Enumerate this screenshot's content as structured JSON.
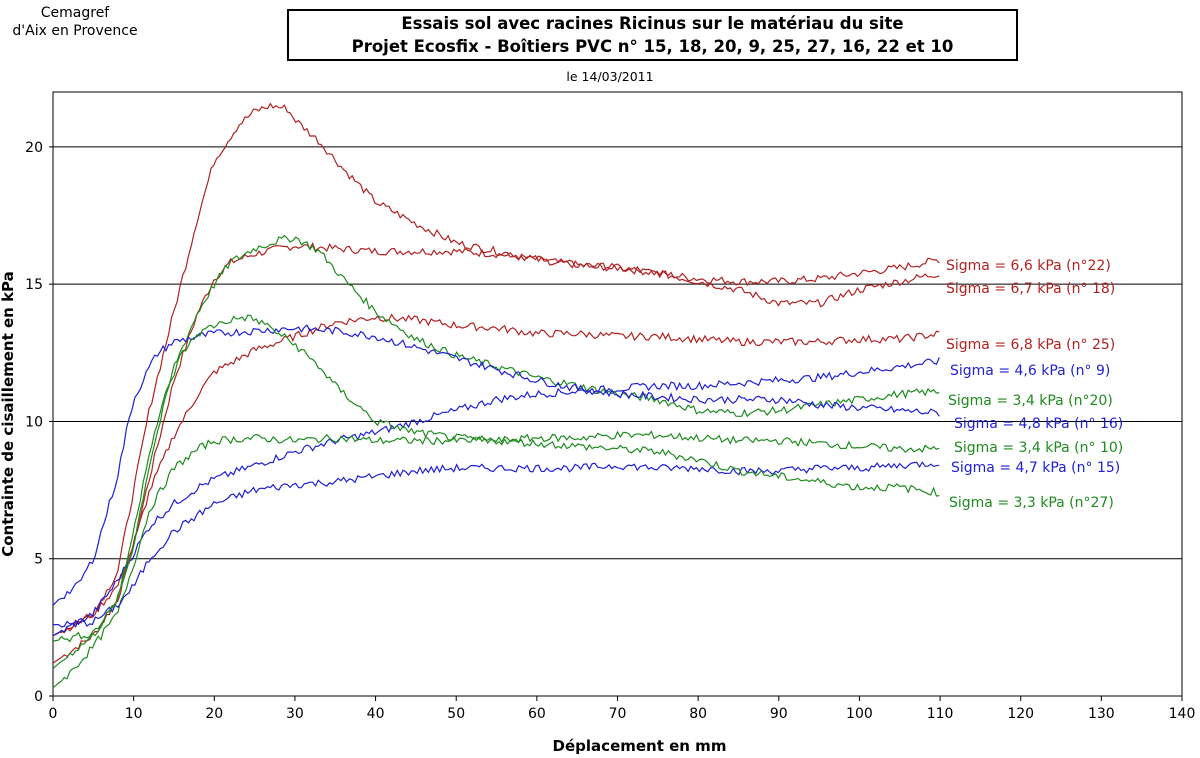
{
  "header": {
    "org_line1": "Cemagref",
    "org_line2": "d'Aix en Provence"
  },
  "chart_data": {
    "type": "line",
    "title": "Essais sol avec racines Ricinus sur le matériau du site",
    "title_line2": "Projet Ecosfix - Boîtiers PVC n° 15, 18, 20, 9, 25, 27, 16, 22 et 10",
    "subtitle": "le 14/03/2011",
    "xlabel": "Déplacement en mm",
    "ylabel": "Contrainte de cisaillement en kPa",
    "xlim": [
      0,
      140
    ],
    "ylim": [
      0,
      22
    ],
    "xticks": [
      "0",
      "10",
      "20",
      "30",
      "40",
      "50",
      "60",
      "70",
      "80",
      "90",
      "100",
      "110",
      "120",
      "130",
      "140"
    ],
    "yticks": [
      "0",
      "5",
      "10",
      "15",
      "20"
    ],
    "grid": "horizontal",
    "series": [
      {
        "name": "Sigma = 6,6 kPa (n°22)",
        "color": "#B22222",
        "x": [
          0,
          2,
          5,
          8,
          10,
          12,
          15,
          18,
          20,
          22,
          25,
          28,
          30,
          35,
          40,
          45,
          50,
          55,
          60,
          65,
          70,
          75,
          80,
          85,
          90,
          95,
          100,
          105,
          110
        ],
        "y": [
          1.2,
          1.6,
          2.2,
          3.5,
          5.5,
          8.0,
          11.5,
          14.0,
          15.2,
          15.8,
          16.1,
          16.3,
          16.4,
          16.3,
          16.2,
          16.2,
          16.2,
          16.1,
          15.9,
          15.7,
          15.6,
          15.4,
          15.2,
          15.1,
          15.1,
          15.2,
          15.4,
          15.6,
          15.9
        ]
      },
      {
        "name": "Sigma = 6,7 kPa (n° 18)",
        "color": "#B22222",
        "x": [
          0,
          2,
          5,
          8,
          10,
          12,
          15,
          18,
          20,
          23,
          25,
          27,
          29,
          30,
          33,
          36,
          40,
          45,
          50,
          55,
          60,
          65,
          70,
          75,
          80,
          85,
          90,
          93,
          95,
          100,
          105,
          110
        ],
        "y": [
          2.2,
          2.5,
          3.0,
          4.5,
          7.5,
          10.5,
          14.0,
          17.5,
          19.5,
          20.8,
          21.3,
          21.5,
          21.4,
          21.0,
          20.2,
          19.2,
          18.0,
          17.2,
          16.5,
          16.2,
          15.9,
          15.7,
          15.6,
          15.4,
          15.1,
          14.8,
          14.3,
          14.3,
          14.3,
          14.8,
          15.1,
          15.4
        ]
      },
      {
        "name": "Sigma = 6,8 kPa (n° 25)",
        "color": "#B22222",
        "x": [
          0,
          2,
          5,
          8,
          10,
          12,
          15,
          18,
          20,
          25,
          30,
          35,
          40,
          45,
          50,
          55,
          60,
          65,
          70,
          75,
          80,
          85,
          90,
          95,
          100,
          105,
          110
        ],
        "y": [
          2.2,
          2.5,
          3.0,
          4.0,
          5.5,
          7.5,
          9.5,
          11.0,
          11.8,
          12.6,
          13.1,
          13.6,
          13.8,
          13.7,
          13.5,
          13.4,
          13.2,
          13.2,
          13.1,
          13.1,
          13.0,
          12.9,
          12.9,
          12.9,
          13.0,
          13.0,
          13.2
        ]
      },
      {
        "name": "Sigma = 4,6 kPa (n° 9)",
        "color": "#1F1FD6",
        "x": [
          0,
          2,
          5,
          8,
          10,
          12,
          15,
          18,
          20,
          25,
          30,
          35,
          40,
          45,
          50,
          55,
          60,
          65,
          70,
          75,
          80,
          85,
          90,
          95,
          100,
          105,
          110
        ],
        "y": [
          2.2,
          2.5,
          3.0,
          4.2,
          5.2,
          6.2,
          7.0,
          7.6,
          7.9,
          8.4,
          8.9,
          9.3,
          9.6,
          10.0,
          10.4,
          10.8,
          11.0,
          11.1,
          11.2,
          11.3,
          11.3,
          11.4,
          11.5,
          11.6,
          11.8,
          12.0,
          12.2
        ]
      },
      {
        "name": "Sigma = 3,4 kPa (n°20)",
        "color": "#1E8C1E",
        "x": [
          0,
          2,
          5,
          8,
          10,
          12,
          15,
          18,
          20,
          22,
          25,
          28,
          30,
          33,
          36,
          40,
          45,
          50,
          55,
          60,
          65,
          70,
          75,
          80,
          85,
          90,
          95,
          100,
          105,
          110
        ],
        "y": [
          1.0,
          1.5,
          2.2,
          3.5,
          5.5,
          8.5,
          12.0,
          14.0,
          15.0,
          15.8,
          16.3,
          16.6,
          16.7,
          16.2,
          15.2,
          14.0,
          13.0,
          12.4,
          12.0,
          11.6,
          11.3,
          11.0,
          10.8,
          10.4,
          10.3,
          10.4,
          10.6,
          10.8,
          11.0,
          11.1
        ]
      },
      {
        "name": "Sigma = 4,8 kPa (n° 16)",
        "color": "#1F1FD6",
        "x": [
          0,
          1,
          2,
          3,
          5,
          8,
          9,
          10,
          12,
          13,
          15,
          18,
          20,
          25,
          30,
          35,
          40,
          45,
          50,
          55,
          60,
          65,
          70,
          75,
          80,
          85,
          90,
          93,
          95,
          100,
          105,
          110
        ],
        "y": [
          3.3,
          3.6,
          3.8,
          4.0,
          5.0,
          8.0,
          9.5,
          10.8,
          12.0,
          12.5,
          12.9,
          13.1,
          13.2,
          13.3,
          13.4,
          13.3,
          13.1,
          12.7,
          12.3,
          11.9,
          11.5,
          11.2,
          11.0,
          10.9,
          10.8,
          10.8,
          10.8,
          10.7,
          10.6,
          10.5,
          10.4,
          10.3
        ]
      },
      {
        "name": "Sigma = 3,4 kPa (n° 10)",
        "color": "#1E8C1E",
        "x": [
          0,
          2,
          5,
          8,
          10,
          12,
          15,
          18,
          20,
          25,
          30,
          35,
          40,
          45,
          50,
          55,
          60,
          65,
          70,
          75,
          80,
          85,
          90,
          95,
          100,
          105,
          110
        ],
        "y": [
          0.3,
          0.8,
          1.8,
          3.0,
          4.8,
          6.8,
          8.3,
          9.0,
          9.3,
          9.4,
          9.3,
          9.4,
          9.3,
          9.3,
          9.3,
          9.3,
          9.4,
          9.4,
          9.5,
          9.5,
          9.4,
          9.3,
          9.3,
          9.2,
          9.1,
          9.0,
          9.0
        ]
      },
      {
        "name": "Sigma = 4,7 kPa (n° 15)",
        "color": "#1F1FD6",
        "x": [
          0,
          2,
          5,
          8,
          10,
          12,
          15,
          18,
          20,
          25,
          30,
          35,
          40,
          45,
          50,
          55,
          60,
          65,
          70,
          75,
          80,
          85,
          90,
          95,
          100,
          105,
          110
        ],
        "y": [
          2.6,
          2.6,
          2.7,
          3.3,
          4.0,
          5.0,
          6.0,
          6.6,
          7.0,
          7.5,
          7.7,
          7.8,
          8.0,
          8.2,
          8.3,
          8.3,
          8.3,
          8.3,
          8.4,
          8.3,
          8.3,
          8.2,
          8.2,
          8.3,
          8.3,
          8.4,
          8.5
        ]
      },
      {
        "name": "Sigma = 3,3 kPa (n°27)",
        "color": "#1E8C1E",
        "x": [
          0,
          2,
          5,
          8,
          10,
          12,
          14,
          16,
          18,
          20,
          22,
          24,
          26,
          28,
          30,
          33,
          35,
          40,
          45,
          50,
          55,
          60,
          65,
          70,
          75,
          80,
          85,
          90,
          95,
          100,
          105,
          110
        ],
        "y": [
          2.0,
          2.1,
          2.3,
          3.5,
          6.0,
          9.0,
          11.0,
          12.5,
          13.2,
          13.5,
          13.7,
          13.8,
          13.6,
          13.2,
          12.8,
          12.0,
          11.3,
          10.0,
          9.6,
          9.4,
          9.3,
          9.2,
          9.1,
          9.0,
          8.9,
          8.6,
          8.2,
          8.0,
          7.8,
          7.6,
          7.6,
          7.4
        ]
      }
    ]
  }
}
